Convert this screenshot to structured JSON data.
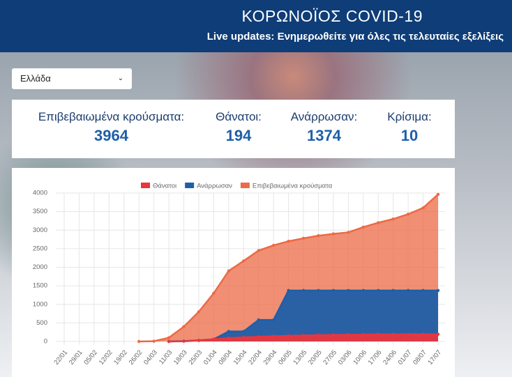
{
  "header": {
    "title": "ΚΟΡΩΝΟΪΟΣ COVID-19",
    "subtitle": "Live updates: Ενημερωθείτε για όλες τις τελευταίες εξελίξεις"
  },
  "selector": {
    "value": "Ελλάδα"
  },
  "stats": [
    {
      "label": "Επιβεβαιωμένα κρούσματα:",
      "value": 3964
    },
    {
      "label": "Θάνατοι:",
      "value": 194
    },
    {
      "label": "Ανάρρωσαν:",
      "value": 1374
    },
    {
      "label": "Κρίσιμα:",
      "value": 10
    }
  ],
  "chart_data": {
    "type": "area",
    "categories": [
      "22/01",
      "29/01",
      "05/02",
      "12/02",
      "19/02",
      "26/02",
      "04/03",
      "11/03",
      "18/03",
      "25/03",
      "01/04",
      "08/04",
      "15/04",
      "22/04",
      "29/04",
      "06/05",
      "13/05",
      "20/05",
      "27/05",
      "03/06",
      "10/06",
      "17/06",
      "24/06",
      "01/07",
      "08/07",
      "17/07"
    ],
    "series": [
      {
        "name": "Θάνατοι",
        "color": "#e8363f",
        "values": [
          null,
          null,
          null,
          null,
          null,
          null,
          null,
          0,
          5,
          25,
          60,
          90,
          110,
          125,
          140,
          150,
          160,
          170,
          175,
          180,
          183,
          190,
          191,
          192,
          193,
          194
        ]
      },
      {
        "name": "Ανάρρωσαν",
        "color": "#1f5fa8",
        "values": [
          null,
          null,
          null,
          null,
          null,
          null,
          null,
          0,
          10,
          30,
          60,
          270,
          270,
          580,
          580,
          1374,
          1374,
          1374,
          1374,
          1374,
          1374,
          1374,
          1374,
          1374,
          1374,
          1374
        ]
      },
      {
        "name": "Επιβεβαιωμένα κρούσματα",
        "color": "#ec6a45",
        "values": [
          null,
          null,
          null,
          null,
          null,
          0,
          7,
          100,
          400,
          800,
          1300,
          1900,
          2170,
          2450,
          2590,
          2700,
          2780,
          2850,
          2900,
          2940,
          3080,
          3200,
          3300,
          3430,
          3600,
          3964
        ]
      }
    ],
    "ylim": [
      0,
      4000
    ],
    "yticks": [
      0,
      500,
      1000,
      1500,
      2000,
      2500,
      3000,
      3500,
      4000
    ],
    "grid": true
  }
}
